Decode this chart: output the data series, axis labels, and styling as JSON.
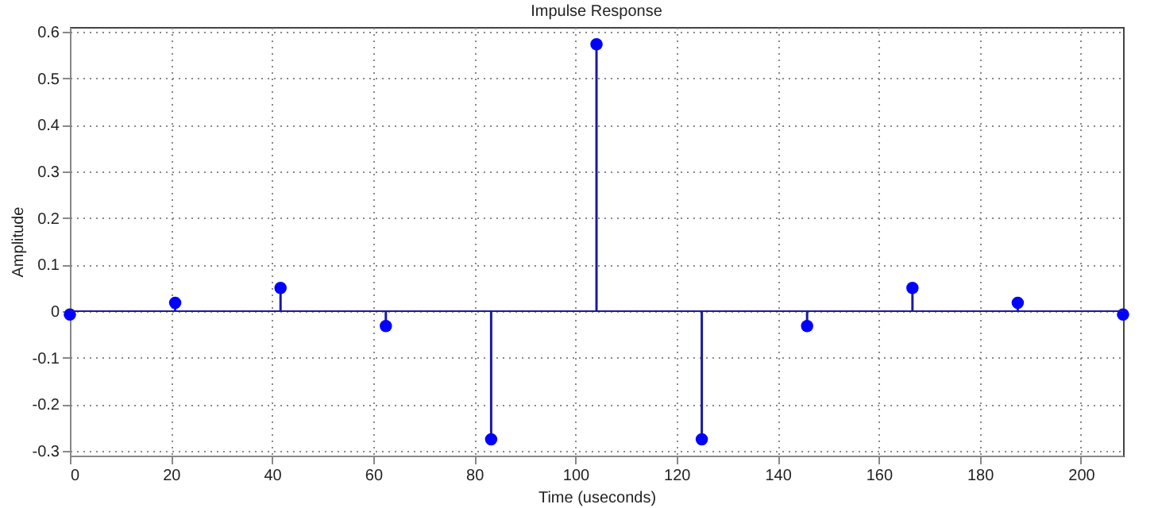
{
  "chart_data": {
    "type": "lollipop",
    "title": "Impulse Response",
    "xlabel": "Time (useconds)",
    "ylabel": "Amplitude",
    "x": [
      0,
      20.83,
      41.67,
      62.5,
      83.33,
      104.17,
      125,
      145.83,
      166.67,
      187.5,
      208.33
    ],
    "series": [
      {
        "color": "#0000ff",
        "values": [
          -0.007,
          0.018,
          0.05,
          -0.032,
          -0.275,
          0.573,
          -0.275,
          -0.032,
          0.05,
          0.018,
          -0.007
        ]
      }
    ],
    "xlim": [
      0,
      208.33
    ],
    "xticks": [
      0,
      20,
      40,
      60,
      80,
      100,
      120,
      140,
      160,
      180,
      200
    ],
    "ylim": [
      -0.31,
      0.61
    ],
    "yticks": [
      -0.3,
      -0.2,
      -0.1,
      0,
      0.1,
      0.2,
      0.3,
      0.4,
      0.5,
      0.6
    ],
    "ref_lines": [
      {
        "axis": "y",
        "value": 0,
        "color": "#1a1aa0"
      }
    ],
    "grid": true,
    "marker": "circle"
  }
}
